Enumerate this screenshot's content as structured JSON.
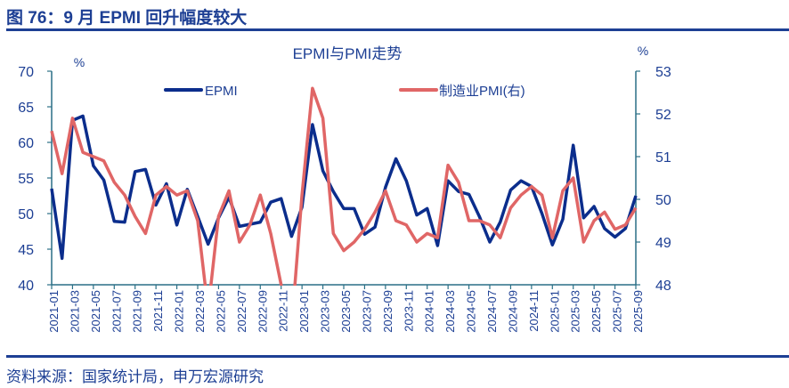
{
  "figure_title": "图 76：9 月 EPMI 回升幅度较大",
  "source": "资料来源：国家统计局，申万宏源研究",
  "colors": {
    "epmi": "#0b2d8c",
    "pmi": "#e06666",
    "axis": "#2a6f86",
    "text": "#1d3f94"
  },
  "chart_data": {
    "type": "line",
    "title": "EPMI与PMI走势",
    "left_unit": "%",
    "right_unit": "%",
    "ylim_left": [
      40,
      70
    ],
    "yticks_left": [
      40,
      45,
      50,
      55,
      60,
      65,
      70
    ],
    "ylim_right": [
      48,
      53
    ],
    "yticks_right": [
      48,
      49,
      50,
      51,
      52,
      53
    ],
    "legend_position": "top",
    "x": [
      "2021-01",
      "2021-02",
      "2021-03",
      "2021-04",
      "2021-05",
      "2021-06",
      "2021-07",
      "2021-08",
      "2021-09",
      "2021-10",
      "2021-11",
      "2021-12",
      "2022-01",
      "2022-02",
      "2022-03",
      "2022-04",
      "2022-05",
      "2022-06",
      "2022-07",
      "2022-08",
      "2022-09",
      "2022-10",
      "2022-11",
      "2022-12",
      "2023-01",
      "2023-02",
      "2023-03",
      "2023-04",
      "2023-05",
      "2023-06",
      "2023-07",
      "2023-08",
      "2023-09",
      "2023-10",
      "2023-11",
      "2023-12",
      "2024-01",
      "2024-02",
      "2024-03",
      "2024-04",
      "2024-05",
      "2024-06",
      "2024-07",
      "2024-08",
      "2024-09",
      "2024-10",
      "2024-11",
      "2024-12",
      "2025-01",
      "2025-02",
      "2025-03",
      "2025-04",
      "2025-05",
      "2025-06",
      "2025-07",
      "2025-08",
      "2025-09"
    ],
    "xtick_labels": [
      "2021-01",
      "2021-03",
      "2021-05",
      "2021-07",
      "2021-09",
      "2021-11",
      "2022-01",
      "2022-03",
      "2022-05",
      "2022-07",
      "2022-09",
      "2022-11",
      "2023-01",
      "2023-03",
      "2023-05",
      "2023-07",
      "2023-09",
      "2023-11",
      "2024-01",
      "2024-03",
      "2024-05",
      "2024-07",
      "2024-09",
      "2024-11",
      "2025-01",
      "2025-03",
      "2025-05",
      "2025-07",
      "2025-09"
    ],
    "series": [
      {
        "name": "EPMI",
        "axis": "left",
        "values": [
          53.5,
          43.7,
          63.1,
          63.7,
          56.7,
          54.7,
          48.9,
          48.8,
          55.9,
          56.2,
          51.2,
          54.2,
          48.4,
          53.4,
          49.6,
          45.7,
          49.4,
          52.3,
          48.2,
          48.5,
          48.8,
          51.6,
          52.1,
          46.8,
          50.9,
          62.5,
          56.0,
          53.1,
          50.7,
          50.7,
          47.1,
          48.1,
          53.7,
          57.7,
          54.6,
          49.8,
          50.7,
          45.5,
          54.6,
          53.1,
          52.7,
          49.6,
          46.0,
          48.8,
          53.3,
          54.6,
          53.8,
          50.0,
          45.6,
          49.2,
          59.6,
          49.4,
          51.0,
          47.9,
          46.7,
          47.9,
          52.5
        ]
      },
      {
        "name": "制造业PMI(右)",
        "axis": "right",
        "values": [
          51.6,
          50.6,
          51.9,
          51.1,
          51.0,
          50.9,
          50.4,
          50.1,
          49.6,
          49.2,
          50.1,
          50.3,
          50.1,
          50.2,
          49.5,
          47.4,
          49.6,
          50.2,
          49.0,
          49.4,
          50.1,
          49.2,
          48.0,
          47.0,
          50.1,
          52.6,
          51.9,
          49.2,
          48.8,
          49.0,
          49.3,
          49.7,
          50.2,
          49.5,
          49.4,
          49.0,
          49.2,
          49.1,
          50.8,
          50.4,
          49.5,
          49.5,
          49.4,
          49.1,
          49.8,
          50.1,
          50.3,
          50.1,
          49.1,
          50.2,
          50.5,
          49.0,
          49.5,
          49.7,
          49.3,
          49.4,
          49.8
        ]
      }
    ]
  }
}
